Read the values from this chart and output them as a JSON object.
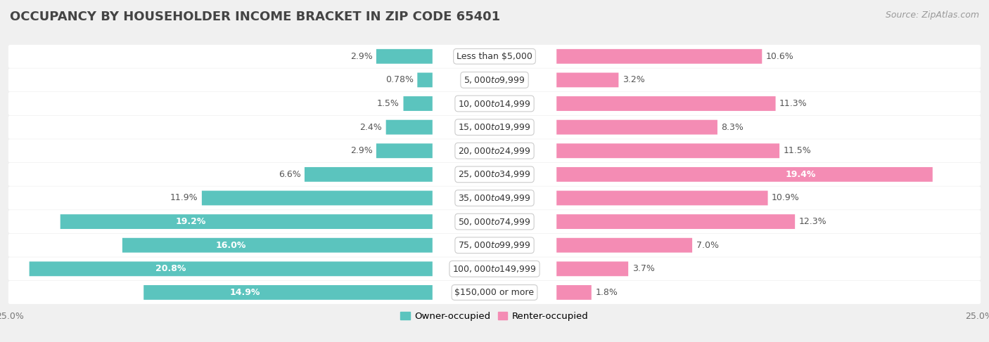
{
  "title": "OCCUPANCY BY HOUSEHOLDER INCOME BRACKET IN ZIP CODE 65401",
  "source": "Source: ZipAtlas.com",
  "categories": [
    "Less than $5,000",
    "$5,000 to $9,999",
    "$10,000 to $14,999",
    "$15,000 to $19,999",
    "$20,000 to $24,999",
    "$25,000 to $34,999",
    "$35,000 to $49,999",
    "$50,000 to $74,999",
    "$75,000 to $99,999",
    "$100,000 to $149,999",
    "$150,000 or more"
  ],
  "owner_values": [
    2.9,
    0.78,
    1.5,
    2.4,
    2.9,
    6.6,
    11.9,
    19.2,
    16.0,
    20.8,
    14.9
  ],
  "renter_values": [
    10.6,
    3.2,
    11.3,
    8.3,
    11.5,
    19.4,
    10.9,
    12.3,
    7.0,
    3.7,
    1.8
  ],
  "owner_color": "#5bc4be",
  "renter_color": "#f48cb4",
  "owner_label": "Owner-occupied",
  "renter_label": "Renter-occupied",
  "background_color": "#f0f0f0",
  "bar_background": "#ffffff",
  "bar_height": 0.62,
  "xlim": 25.0,
  "title_fontsize": 13,
  "label_fontsize": 9,
  "tick_fontsize": 9,
  "source_fontsize": 9,
  "inside_label_threshold_owner": 12,
  "inside_label_threshold_renter": 17
}
